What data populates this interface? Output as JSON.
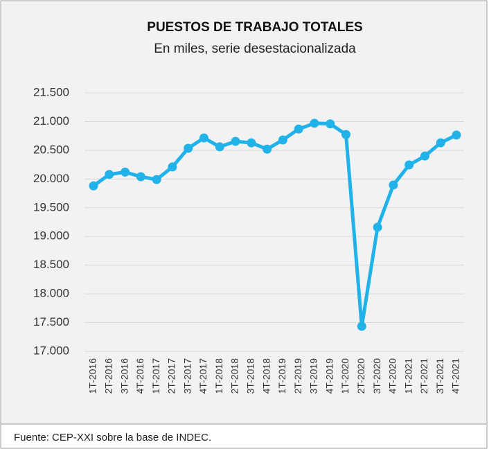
{
  "chart_data": {
    "type": "line",
    "title": "PUESTOS DE TRABAJO TOTALES",
    "subtitle": "En miles, serie desestacionalizada",
    "source": "Fuente: CEP-XXI sobre la base de INDEC.",
    "categories": [
      "1T-2016",
      "2T-2016",
      "3T-2016",
      "4T-2016",
      "1T-2017",
      "2T-2017",
      "3T-2017",
      "4T-2017",
      "1T-2018",
      "2T-2018",
      "3T-2018",
      "4T-2018",
      "1T-2019",
      "2T-2019",
      "3T-2019",
      "4T-2019",
      "1T-2020",
      "2T-2020",
      "3T-2020",
      "4T-2020",
      "1T-2021",
      "2T-2021",
      "3T-2021",
      "4T-2021"
    ],
    "series": [
      {
        "name": "Puestos de trabajo totales",
        "color": "#22b2ea",
        "values": [
          19880,
          20080,
          20120,
          20040,
          19990,
          20210,
          20535,
          20715,
          20560,
          20655,
          20630,
          20520,
          20680,
          20870,
          20970,
          20960,
          20775,
          17435,
          19160,
          19895,
          20245,
          20400,
          20630,
          20765
        ]
      }
    ],
    "ylim": [
      17000,
      21500
    ],
    "yticks": [
      {
        "value": 17000,
        "label": "17.000"
      },
      {
        "value": 17500,
        "label": "17.500"
      },
      {
        "value": 18000,
        "label": "18.000"
      },
      {
        "value": 18500,
        "label": "18.500"
      },
      {
        "value": 19000,
        "label": "19.000"
      },
      {
        "value": 19500,
        "label": "19.500"
      },
      {
        "value": 20000,
        "label": "20.000"
      },
      {
        "value": 20500,
        "label": "20.500"
      },
      {
        "value": 21000,
        "label": "21.000"
      },
      {
        "value": 21500,
        "label": "21.500"
      }
    ],
    "grid": true
  }
}
